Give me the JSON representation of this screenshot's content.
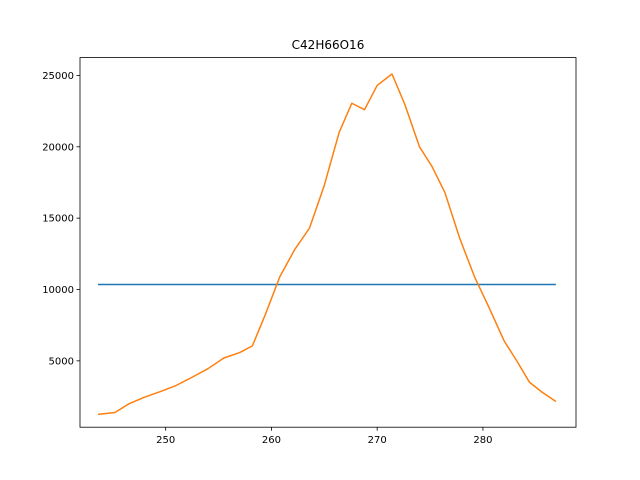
{
  "chart_data": {
    "type": "line",
    "title": "C42H66O16",
    "xlabel": "",
    "ylabel": "",
    "xlim": [
      241.9,
      288.8
    ],
    "ylim": [
      350,
      26250
    ],
    "xticks": [
      250,
      260,
      270,
      280
    ],
    "yticks": [
      5000,
      10000,
      15000,
      20000,
      25000
    ],
    "grid": false,
    "legend": "none",
    "series": [
      {
        "color": "#1f77b4",
        "x": [
          243.6,
          286.9
        ],
        "y": [
          10350,
          10350
        ]
      },
      {
        "color": "#ff7f0e",
        "x": [
          243.6,
          245.2,
          246.5,
          248.0,
          249.5,
          251.0,
          252.5,
          254.0,
          255.5,
          257.0,
          258.2,
          259.4,
          260.8,
          262.2,
          263.6,
          265.0,
          266.4,
          267.6,
          268.8,
          270.0,
          271.4,
          272.6,
          274.0,
          275.2,
          276.4,
          277.8,
          279.2,
          280.6,
          282.0,
          283.2,
          284.4,
          285.6,
          286.9
        ],
        "y": [
          1250,
          1380,
          1980,
          2450,
          2850,
          3280,
          3850,
          4450,
          5200,
          5580,
          6050,
          8200,
          10900,
          12800,
          14300,
          17300,
          21000,
          23050,
          22600,
          24300,
          25100,
          23000,
          20000,
          18600,
          16800,
          13600,
          10900,
          8700,
          6400,
          5000,
          3500,
          2800,
          2150
        ]
      }
    ]
  }
}
